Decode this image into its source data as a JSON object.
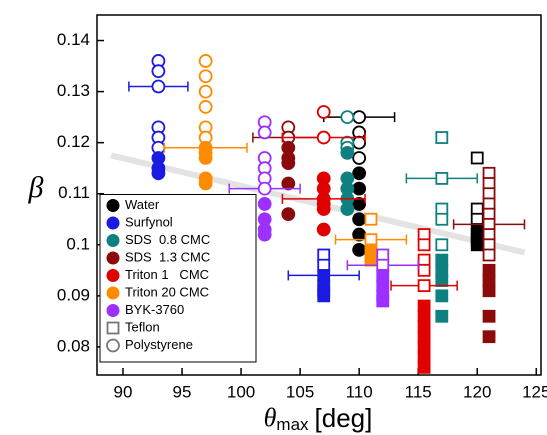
{
  "chart_data": {
    "type": "scatter",
    "ylabel": "β",
    "xlabel": {
      "symbol": "θ",
      "subscript": "max",
      "unit": "[deg]"
    },
    "xlim": [
      87.8,
      125.4
    ],
    "ylim": [
      0.0745,
      0.145
    ],
    "xticks": [
      90,
      95,
      100,
      105,
      110,
      115,
      120,
      125
    ],
    "yticks": [
      0.08,
      0.09,
      0.1,
      0.11,
      0.12,
      0.13,
      0.14
    ],
    "legend": {
      "position": "lower left",
      "markers": [
        {
          "name": "Teflon",
          "marker": "square",
          "color": "#777777"
        },
        {
          "name": "Polystyrene",
          "marker": "circle",
          "color": "#777777"
        }
      ]
    },
    "trend_line": {
      "x": [
        89,
        124
      ],
      "y": [
        0.1175,
        0.0985
      ],
      "color": "#e3e3e3"
    },
    "series": [
      {
        "name": "Water",
        "color": "#000000",
        "polystyrene": {
          "x": [
            110,
            110,
            110,
            110,
            110,
            110,
            110,
            110,
            110,
            110
          ],
          "y": [
            0.125,
            0.122,
            0.12,
            0.117,
            0.114,
            0.111,
            0.108,
            0.105,
            0.102,
            0.099
          ],
          "filled": [
            false,
            false,
            false,
            false,
            true,
            true,
            true,
            true,
            true,
            true
          ],
          "xerr": [
            3,
            null,
            null,
            null,
            null,
            null,
            null,
            null,
            null,
            null
          ]
        },
        "teflon": {
          "x": [
            120,
            120,
            120,
            120,
            120,
            120,
            120
          ],
          "y": [
            0.117,
            0.107,
            0.105,
            0.103,
            0.102,
            0.101,
            0.1
          ],
          "filled": [
            false,
            false,
            false,
            true,
            true,
            true,
            true
          ],
          "xerr": [
            null,
            null,
            null,
            null,
            null,
            null,
            null
          ]
        }
      },
      {
        "name": "Surfynol",
        "color": "#1a1ae0",
        "polystyrene": {
          "x": [
            93,
            93,
            93,
            93,
            93,
            93,
            93,
            93,
            93
          ],
          "y": [
            0.136,
            0.134,
            0.131,
            0.123,
            0.121,
            0.119,
            0.117,
            0.115,
            0.114
          ],
          "filled": [
            false,
            false,
            false,
            false,
            false,
            false,
            true,
            true,
            true
          ],
          "xerr": [
            null,
            null,
            2.5,
            null,
            null,
            null,
            null,
            null,
            null
          ]
        },
        "teflon": {
          "x": [
            107,
            107,
            107,
            107,
            107,
            107
          ],
          "y": [
            0.098,
            0.096,
            0.094,
            0.092,
            0.091,
            0.09
          ],
          "filled": [
            false,
            false,
            true,
            true,
            true,
            true
          ],
          "xerr": [
            null,
            null,
            3,
            null,
            null,
            null
          ]
        }
      },
      {
        "name": "SDS  0.8 CMC",
        "color": "#0e8080",
        "polystyrene": {
          "x": [
            109,
            109,
            109,
            109,
            109,
            109,
            109,
            109
          ],
          "y": [
            0.125,
            0.12,
            0.119,
            0.118,
            0.113,
            0.111,
            0.109,
            0.107
          ],
          "filled": [
            false,
            false,
            false,
            true,
            true,
            true,
            true,
            true
          ],
          "xerr": [
            null,
            null,
            null,
            null,
            null,
            null,
            null,
            null
          ]
        },
        "teflon": {
          "x": [
            117,
            117,
            117,
            117,
            117,
            117,
            117,
            117,
            117,
            117
          ],
          "y": [
            0.121,
            0.113,
            0.107,
            0.105,
            0.1,
            0.097,
            0.095,
            0.093,
            0.09,
            0.086
          ],
          "filled": [
            false,
            false,
            false,
            false,
            false,
            true,
            true,
            true,
            true,
            true
          ],
          "xerr": [
            null,
            3,
            null,
            null,
            null,
            null,
            null,
            null,
            null,
            null
          ]
        }
      },
      {
        "name": "SDS  1.3 CMC",
        "color": "#8b0a0a",
        "polystyrene": {
          "x": [
            104,
            104,
            104,
            104,
            104,
            104,
            104
          ],
          "y": [
            0.123,
            0.121,
            0.119,
            0.117,
            0.116,
            0.112,
            0.106
          ],
          "filled": [
            false,
            false,
            true,
            true,
            true,
            true,
            true
          ],
          "xerr": [
            null,
            3,
            null,
            null,
            null,
            null,
            null
          ]
        },
        "teflon": {
          "x": [
            121,
            121,
            121,
            121,
            121,
            121,
            121,
            121,
            121,
            121,
            121,
            121,
            121,
            121
          ],
          "y": [
            0.114,
            0.112,
            0.11,
            0.108,
            0.106,
            0.104,
            0.102,
            0.1,
            0.098,
            0.095,
            0.093,
            0.091,
            0.086,
            0.082
          ],
          "filled": [
            false,
            false,
            false,
            false,
            false,
            false,
            false,
            false,
            false,
            true,
            true,
            true,
            true,
            true
          ],
          "xerr": [
            null,
            null,
            null,
            null,
            null,
            3,
            null,
            null,
            null,
            null,
            null,
            null,
            null,
            null
          ]
        }
      },
      {
        "name": "Triton 1   CMC",
        "color": "#e00000",
        "polystyrene": {
          "x": [
            107,
            107,
            107,
            107,
            107,
            107,
            107,
            107
          ],
          "y": [
            0.126,
            0.121,
            0.113,
            0.111,
            0.109,
            0.108,
            0.107,
            0.103
          ],
          "filled": [
            false,
            false,
            true,
            true,
            true,
            true,
            true,
            true
          ],
          "xerr": [
            null,
            3.5,
            null,
            null,
            3.5,
            null,
            null,
            null
          ]
        },
        "teflon": {
          "x": [
            115.5,
            115.5,
            115.5,
            115.5,
            115.5,
            115.5,
            115.5,
            115.5,
            115.5,
            115.5,
            115.5,
            115.5
          ],
          "y": [
            0.102,
            0.1,
            0.097,
            0.095,
            0.092,
            0.088,
            0.086,
            0.084,
            0.082,
            0.08,
            0.078,
            0.076
          ],
          "filled": [
            false,
            false,
            false,
            false,
            false,
            true,
            true,
            true,
            true,
            true,
            true,
            true
          ],
          "xerr": [
            null,
            null,
            null,
            null,
            2.8,
            null,
            null,
            null,
            null,
            null,
            null,
            null
          ]
        }
      },
      {
        "name": "Triton 20 CMC",
        "color": "#ff8c00",
        "polystyrene": {
          "x": [
            97,
            97,
            97,
            97,
            97,
            97,
            97,
            97,
            97,
            97,
            97
          ],
          "y": [
            0.136,
            0.133,
            0.13,
            0.127,
            0.123,
            0.121,
            0.119,
            0.118,
            0.117,
            0.113,
            0.112
          ],
          "filled": [
            false,
            false,
            false,
            false,
            false,
            false,
            true,
            true,
            true,
            true,
            true
          ],
          "xerr": [
            null,
            null,
            null,
            null,
            null,
            null,
            3.5,
            null,
            null,
            null,
            null
          ]
        },
        "teflon": {
          "x": [
            111,
            111,
            111,
            111
          ],
          "y": [
            0.105,
            0.101,
            0.099,
            0.097
          ],
          "filled": [
            false,
            false,
            true,
            true
          ],
          "xerr": [
            null,
            3,
            null,
            null
          ]
        }
      },
      {
        "name": "BYK-3760",
        "color": "#9b30ff",
        "polystyrene": {
          "x": [
            102,
            102,
            102,
            102,
            102,
            102,
            102,
            102,
            102,
            102
          ],
          "y": [
            0.124,
            0.122,
            0.117,
            0.115,
            0.113,
            0.111,
            0.108,
            0.105,
            0.103,
            0.102
          ],
          "filled": [
            false,
            false,
            false,
            false,
            false,
            false,
            true,
            true,
            true,
            true
          ],
          "xerr": [
            null,
            null,
            null,
            null,
            null,
            3,
            null,
            null,
            null,
            null
          ]
        },
        "teflon": {
          "x": [
            112,
            112,
            112,
            112,
            112,
            112
          ],
          "y": [
            0.098,
            0.096,
            0.094,
            0.092,
            0.09,
            0.089
          ],
          "filled": [
            false,
            false,
            true,
            true,
            true,
            true
          ],
          "xerr": [
            null,
            3,
            null,
            null,
            null,
            null
          ]
        }
      }
    ]
  }
}
